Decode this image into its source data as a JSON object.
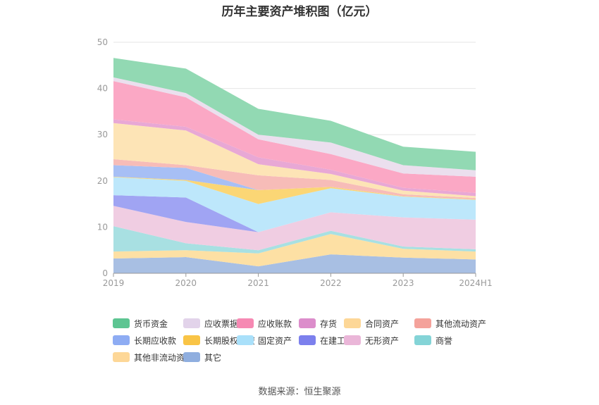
{
  "chart_data": {
    "type": "area",
    "stacked": true,
    "title": "历年主要资产堆积图（亿元）",
    "xlabel": "",
    "ylabel": "",
    "ylim": [
      0,
      50
    ],
    "yticks": [
      0,
      10,
      20,
      30,
      40,
      50
    ],
    "categories": [
      "2019",
      "2020",
      "2021",
      "2022",
      "2023",
      "2024H1"
    ],
    "legend_position": "bottom",
    "series": [
      {
        "name": "其它",
        "color": "#a8bfe3",
        "values": [
          3.2,
          3.5,
          1.5,
          4.1,
          3.4,
          3.0
        ]
      },
      {
        "name": "其他非流动资产",
        "color": "#fde0a4",
        "values": [
          1.5,
          1.5,
          2.8,
          4.4,
          1.9,
          1.7
        ]
      },
      {
        "name": "商誉",
        "color": "#a8e0e2",
        "values": [
          5.5,
          1.5,
          0.7,
          0.7,
          0.5,
          0.5
        ]
      },
      {
        "name": "无形资产",
        "color": "#f0cde2",
        "values": [
          4.4,
          4.6,
          3.9,
          4.0,
          6.3,
          6.4
        ]
      },
      {
        "name": "在建工程",
        "color": "#a0a4f3",
        "values": [
          2.3,
          5.3,
          0.0,
          0.0,
          0.0,
          0.0
        ]
      },
      {
        "name": "固定资产",
        "color": "#bde7fb",
        "values": [
          3.9,
          3.6,
          6.1,
          5.2,
          4.5,
          4.3
        ]
      },
      {
        "name": "长期股权投资",
        "color": "#fbd675",
        "values": [
          0.1,
          0.2,
          3.0,
          0.3,
          0.1,
          0.1
        ]
      },
      {
        "name": "长期应收款",
        "color": "#a7bff5",
        "values": [
          2.5,
          2.6,
          0.0,
          0.0,
          0.0,
          0.0
        ]
      },
      {
        "name": "其他流动资产",
        "color": "#f7bcb8",
        "values": [
          1.3,
          0.6,
          3.2,
          1.5,
          0.4,
          0.3
        ]
      },
      {
        "name": "合同资产",
        "color": "#fde4b6",
        "values": [
          7.8,
          7.5,
          2.4,
          1.3,
          0.8,
          0.4
        ]
      },
      {
        "name": "存货",
        "color": "#e8a8d5",
        "values": [
          0.8,
          0.8,
          1.5,
          0.9,
          0.6,
          0.7
        ]
      },
      {
        "name": "应收账款",
        "color": "#fba8c5",
        "values": [
          8.3,
          6.4,
          3.9,
          3.4,
          3.1,
          3.5
        ]
      },
      {
        "name": "应收票据",
        "color": "#ebdfee",
        "values": [
          0.8,
          0.9,
          1.0,
          2.5,
          1.8,
          1.4
        ]
      },
      {
        "name": "货币资金",
        "color": "#92d9b3",
        "values": [
          4.2,
          5.3,
          5.6,
          4.7,
          4.0,
          4.0
        ]
      }
    ],
    "legend": [
      {
        "name": "货币资金",
        "color": "#5dc592"
      },
      {
        "name": "应收票据",
        "color": "#e2d3ea"
      },
      {
        "name": "应收账款",
        "color": "#f689b3"
      },
      {
        "name": "存货",
        "color": "#dc8dcb"
      },
      {
        "name": "合同资产",
        "color": "#fdd797"
      },
      {
        "name": "其他流动资产",
        "color": "#f4a29b"
      },
      {
        "name": "长期应收款",
        "color": "#8eacf3"
      },
      {
        "name": "长期股权投资",
        "color": "#f9c446"
      },
      {
        "name": "固定资产",
        "color": "#a9e0fa"
      },
      {
        "name": "在建工程",
        "color": "#7c80ed"
      },
      {
        "name": "无形资产",
        "color": "#eab6d8"
      },
      {
        "name": "商誉",
        "color": "#84d4d7"
      },
      {
        "name": "其他非流动资产",
        "color": "#fdd797"
      },
      {
        "name": "其它",
        "color": "#8faedf"
      }
    ],
    "source": "数据来源：恒生聚源"
  }
}
